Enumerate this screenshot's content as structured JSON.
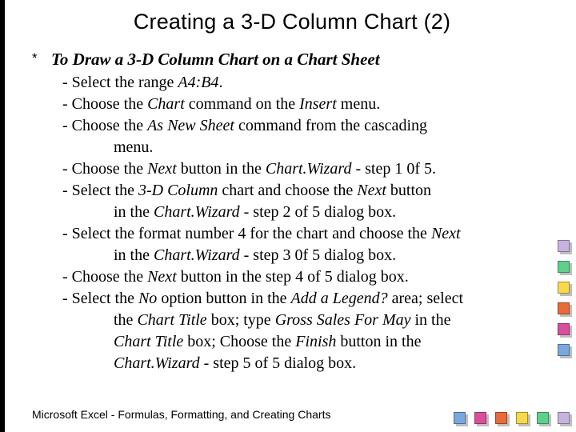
{
  "title": "Creating a 3-D Column Chart (2)",
  "bullet_glyph": "*",
  "heading": "To Draw a 3-D Column Chart on a Chart Sheet",
  "steps": {
    "s1a": "- Select the range ",
    "s1b": "A4:B4",
    "s1c": ".",
    "s2a": "- Choose the ",
    "s2b": "Chart",
    "s2c": " command on the ",
    "s2d": "Insert",
    "s2e": " menu.",
    "s3a": "- Choose the ",
    "s3b": "As New Sheet",
    "s3c": " command from the cascading",
    "s3d": "menu.",
    "s4a": "- Choose the ",
    "s4b": "Next",
    "s4c": " button in the ",
    "s4d": "Chart.Wizard",
    "s4e": " - step 1 0f 5.",
    "s5a": "- Select the ",
    "s5b": "3-D Column",
    "s5c": " chart and choose the ",
    "s5d": "Next",
    "s5e": " button",
    "s5f": "in the ",
    "s5g": "Chart.Wizard",
    "s5h": " - step 2 of 5 dialog box.",
    "s6a": "- Select the format number 4 for the chart  and choose the ",
    "s6b": "Next",
    "s6c": "in the ",
    "s6d": "Chart.Wizard",
    "s6e": " - step 3 0f 5 dialog box.",
    "s7a": "- Choose the ",
    "s7b": "Next",
    "s7c": " button in the step 4 of 5 dialog box.",
    "s8a": "- Select the ",
    "s8b": "No",
    "s8c": " option button in the ",
    "s8d": "Add a Legend?",
    "s8e": " area; select",
    "s8f": "the ",
    "s8g": "Chart Title",
    "s8h": " box; type ",
    "s8i": "Gross Sales For May",
    "s8j": " in the",
    "s8k": "Chart Title",
    "s8l": " box; Choose the ",
    "s8m": "Finish",
    "s8n": " button in the",
    "s8o": "Chart.Wizard",
    "s8p": " - step 5 of 5 dialog box."
  },
  "footer": "Microsoft  Excel - Formulas, Formatting, and Creating Charts",
  "cube_colors": {
    "r1": "#c6b3e0",
    "r2": "#5fd08a",
    "r3": "#f7d94c",
    "r4": "#e86b3a",
    "r5": "#d94f9e",
    "r6": "#7aa7e0",
    "b1": "#c6b3e0",
    "b2": "#5fd08a",
    "b3": "#f7d94c",
    "b4": "#e86b3a",
    "b5": "#d94f9e",
    "b6": "#7aa7e0"
  }
}
